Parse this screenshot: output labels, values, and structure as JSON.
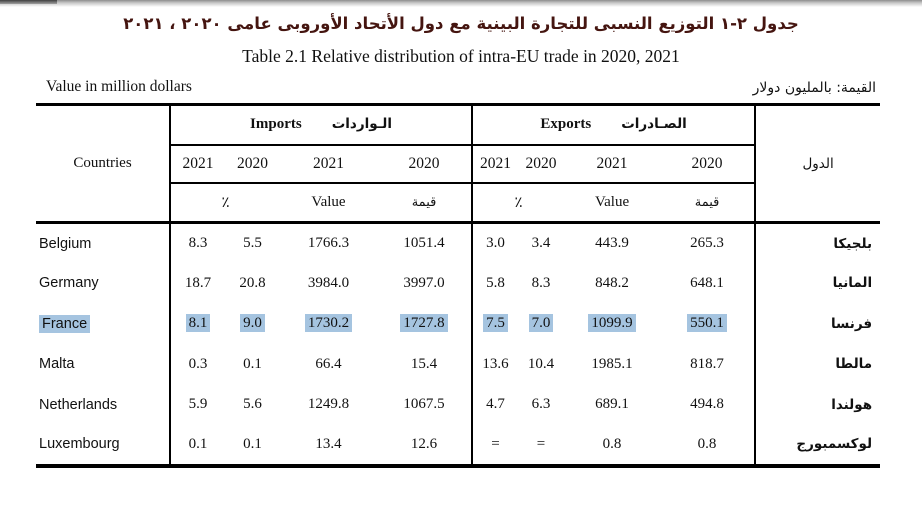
{
  "page": {
    "title_ar": "جدول ٢-١  التوزيع النسبى للتجارة البينية مع دول الأتحاد الأوروبى عامى ٢٠٢٠ ، ٢٠٢١",
    "title_en": "Table 2.1 Relative distribution of intra-EU trade in 2020, 2021",
    "unit_note_en": "Value in million dollars",
    "unit_note_ar": "القيمة: بالمليون دولار",
    "title_color": "#451510",
    "highlight_color": "#a5c4e0"
  },
  "table": {
    "countries_header_en": "Countries",
    "countries_header_ar": "الدول",
    "imports_header": {
      "en": "Imports",
      "ar": "الـواردات"
    },
    "exports_header": {
      "en": "Exports",
      "ar": "الصـادرات"
    },
    "year_cols": [
      "2021",
      "2020",
      "2021",
      "2020"
    ],
    "sub_headers": {
      "pct": "٪",
      "value_en": "Value",
      "value_ar": "قيمة"
    },
    "rows": [
      {
        "country_en": "Belgium",
        "country_ar": "بلجيكا",
        "imports": [
          "8.3",
          "5.5",
          "1766.3",
          "1051.4"
        ],
        "exports": [
          "3.0",
          "3.4",
          "443.9",
          "265.3"
        ],
        "highlighted": false
      },
      {
        "country_en": "Germany",
        "country_ar": "المانيا",
        "imports": [
          "18.7",
          "20.8",
          "3984.0",
          "3997.0"
        ],
        "exports": [
          "5.8",
          "8.3",
          "848.2",
          "648.1"
        ],
        "highlighted": false
      },
      {
        "country_en": "France",
        "country_ar": "فرنسا",
        "imports": [
          "8.1",
          "9.0",
          "1730.2",
          "1727.8"
        ],
        "exports": [
          "7.5",
          "7.0",
          "1099.9",
          "550.1"
        ],
        "highlighted": true
      },
      {
        "country_en": "Malta",
        "country_ar": "مالطا",
        "imports": [
          "0.3",
          "0.1",
          "66.4",
          "15.4"
        ],
        "exports": [
          "13.6",
          "10.4",
          "1985.1",
          "818.7"
        ],
        "highlighted": false
      },
      {
        "country_en": "Netherlands",
        "country_ar": "هولندا",
        "imports": [
          "5.9",
          "5.6",
          "1249.8",
          "1067.5"
        ],
        "exports": [
          "4.7",
          "6.3",
          "689.1",
          "494.8"
        ],
        "highlighted": false
      },
      {
        "country_en": "Luxembourg",
        "country_ar": "لوكسمبورج",
        "imports": [
          "0.1",
          "0.1",
          "13.4",
          "12.6"
        ],
        "exports": [
          "=",
          "=",
          "0.8",
          "0.8"
        ],
        "highlighted": false
      }
    ]
  }
}
